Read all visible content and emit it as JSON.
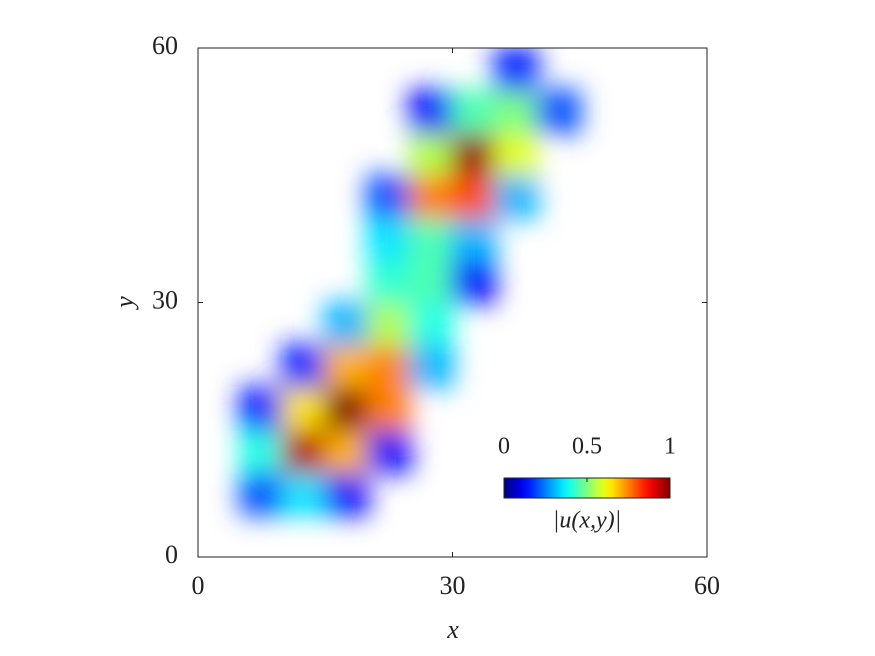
{
  "chart_data": {
    "type": "heatmap",
    "xlabel": "x",
    "ylabel": "y",
    "xlim": [
      0,
      60
    ],
    "ylim": [
      0,
      60
    ],
    "xticks": [
      0,
      30,
      60
    ],
    "yticks": [
      0,
      30,
      60
    ],
    "x": [
      2.5,
      7.5,
      12.5,
      17.5,
      22.5,
      27.5,
      32.5,
      37.5,
      42.5,
      47.5,
      52.5,
      57.5
    ],
    "y": [
      2.5,
      7.5,
      12.5,
      17.5,
      22.5,
      27.5,
      32.5,
      37.5,
      42.5,
      47.5,
      52.5,
      57.5
    ],
    "z": [
      [
        null,
        null,
        null,
        null,
        null,
        null,
        null,
        null,
        null,
        null,
        null,
        null
      ],
      [
        null,
        0.2,
        0.35,
        0.12,
        null,
        null,
        null,
        null,
        null,
        null,
        null,
        null
      ],
      [
        null,
        0.4,
        0.95,
        0.7,
        0.12,
        null,
        null,
        null,
        null,
        null,
        null,
        null
      ],
      [
        null,
        0.15,
        0.65,
        1.0,
        0.75,
        null,
        null,
        null,
        null,
        null,
        null,
        null
      ],
      [
        null,
        null,
        0.15,
        0.7,
        0.75,
        0.3,
        null,
        null,
        null,
        null,
        null,
        null
      ],
      [
        null,
        null,
        null,
        0.3,
        0.55,
        0.4,
        null,
        null,
        null,
        null,
        null,
        null
      ],
      [
        null,
        null,
        null,
        null,
        0.42,
        0.45,
        0.12,
        null,
        null,
        null,
        null,
        null
      ],
      [
        null,
        null,
        null,
        null,
        0.35,
        0.45,
        0.3,
        null,
        null,
        null,
        null,
        null
      ],
      [
        null,
        null,
        null,
        null,
        0.2,
        0.75,
        0.8,
        0.3,
        null,
        null,
        null,
        null
      ],
      [
        null,
        null,
        null,
        null,
        null,
        0.55,
        0.98,
        0.6,
        null,
        null,
        null,
        null
      ],
      [
        null,
        null,
        null,
        null,
        null,
        0.12,
        0.45,
        0.5,
        0.2,
        null,
        null,
        null
      ],
      [
        null,
        null,
        null,
        null,
        null,
        null,
        null,
        0.15,
        null,
        null,
        null,
        null
      ]
    ],
    "colormap": "jet",
    "colorbar_label": "|u(x,y)|",
    "clim": [
      0,
      1
    ],
    "cticks": [
      0,
      0.5,
      1
    ]
  }
}
